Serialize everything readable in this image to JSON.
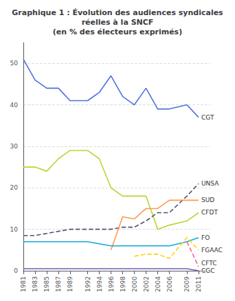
{
  "chart_data": {
    "type": "line",
    "title": "Graphique 1 : Évolution des audiences syndicales\nréelles à la SNCF\n(en % des électeurs exprimés)",
    "x": [
      1981,
      1983,
      1985,
      1987,
      1989,
      1992,
      1994,
      1996,
      1998,
      2000,
      2002,
      2004,
      2006,
      2009,
      2011
    ],
    "series": [
      {
        "name": "CGT",
        "line_style": "solid",
        "values": [
          51,
          46,
          44,
          44,
          41,
          41,
          43,
          47,
          42,
          40,
          44,
          39,
          39,
          40,
          37
        ]
      },
      {
        "name": "CFDT",
        "line_style": "solid",
        "values": [
          25,
          25,
          24,
          27,
          29,
          29,
          27,
          20,
          18,
          18,
          18,
          10,
          11,
          12,
          14
        ]
      },
      {
        "name": "UNSA",
        "line_style": "dashed",
        "values": [
          8.5,
          8.5,
          9,
          9.5,
          10,
          10,
          10,
          10,
          10.5,
          10.5,
          12,
          14,
          14,
          18,
          21
        ]
      },
      {
        "name": "SUD",
        "line_style": "solid",
        "values": [
          null,
          null,
          null,
          null,
          null,
          null,
          null,
          5,
          13,
          12.5,
          15,
          15,
          17,
          17,
          17
        ]
      },
      {
        "name": "FO",
        "line_style": "solid",
        "values": [
          7,
          7,
          7,
          7,
          7,
          7,
          6.5,
          6,
          6,
          6,
          6,
          6,
          6,
          7,
          8
        ]
      },
      {
        "name": "FGAAC",
        "line_style": "dashed",
        "values": [
          null,
          null,
          null,
          null,
          null,
          null,
          null,
          null,
          null,
          3.5,
          4,
          4,
          3,
          8,
          5
        ]
      },
      {
        "name": "CFTC",
        "line_style": "dashed",
        "values": [
          null,
          null,
          null,
          null,
          null,
          null,
          null,
          null,
          null,
          null,
          null,
          null,
          null,
          7,
          1
        ]
      },
      {
        "name": "CGC",
        "line_style": "solid",
        "values": [
          0.5,
          0.5,
          0.5,
          0.5,
          0.5,
          0.5,
          0.5,
          0.5,
          0.5,
          0.5,
          0.5,
          0.5,
          0.5,
          0.5,
          0
        ]
      }
    ],
    "xlim": [
      1981,
      2013
    ],
    "xticks": [
      1981,
      1983,
      1985,
      1987,
      1989,
      1992,
      1994,
      1996,
      1998,
      2000,
      2002,
      2004,
      2006,
      2009,
      2011
    ],
    "ylim": [
      0,
      55
    ],
    "yticks": [
      0,
      10,
      20,
      30,
      40,
      50
    ],
    "grid": true
  }
}
